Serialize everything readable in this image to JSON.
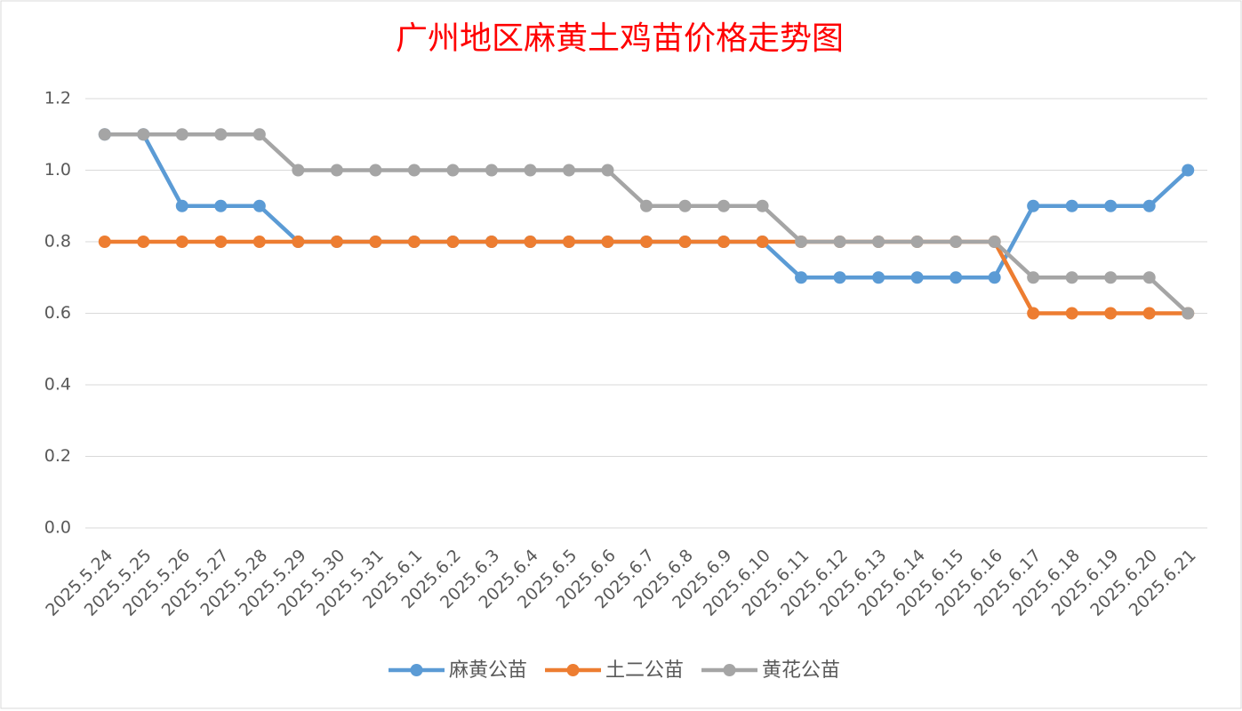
{
  "chart_data": {
    "type": "line",
    "title": "广州地区麻黄土鸡苗价格走势图",
    "categories": [
      "2025.5.24",
      "2025.5.25",
      "2025.5.26",
      "2025.5.27",
      "2025.5.28",
      "2025.5.29",
      "2025.5.30",
      "2025.5.31",
      "2025.6.1",
      "2025.6.2",
      "2025.6.3",
      "2025.6.4",
      "2025.6.5",
      "2025.6.6",
      "2025.6.7",
      "2025.6.8",
      "2025.6.9",
      "2025.6.10",
      "2025.6.11",
      "2025.6.12",
      "2025.6.13",
      "2025.6.14",
      "2025.6.15",
      "2025.6.16",
      "2025.6.17",
      "2025.6.18",
      "2025.6.19",
      "2025.6.20",
      "2025.6.21"
    ],
    "series": [
      {
        "name": "麻黄公苗",
        "color": "#5b9bd5",
        "values": [
          1.1,
          1.1,
          0.9,
          0.9,
          0.9,
          0.8,
          0.8,
          0.8,
          0.8,
          0.8,
          0.8,
          0.8,
          0.8,
          0.8,
          0.8,
          0.8,
          0.8,
          0.8,
          0.7,
          0.7,
          0.7,
          0.7,
          0.7,
          0.7,
          0.9,
          0.9,
          0.9,
          0.9,
          1.0
        ]
      },
      {
        "name": "土二公苗",
        "color": "#ed7d31",
        "values": [
          0.8,
          0.8,
          0.8,
          0.8,
          0.8,
          0.8,
          0.8,
          0.8,
          0.8,
          0.8,
          0.8,
          0.8,
          0.8,
          0.8,
          0.8,
          0.8,
          0.8,
          0.8,
          0.8,
          0.8,
          0.8,
          0.8,
          0.8,
          0.8,
          0.6,
          0.6,
          0.6,
          0.6,
          0.6
        ]
      },
      {
        "name": "黄花公苗",
        "color": "#a5a5a5",
        "values": [
          1.1,
          1.1,
          1.1,
          1.1,
          1.1,
          1.0,
          1.0,
          1.0,
          1.0,
          1.0,
          1.0,
          1.0,
          1.0,
          1.0,
          0.9,
          0.9,
          0.9,
          0.9,
          0.8,
          0.8,
          0.8,
          0.8,
          0.8,
          0.8,
          0.7,
          0.7,
          0.7,
          0.7,
          0.6
        ]
      }
    ],
    "ylim": [
      0,
      1.2
    ],
    "yticks": [
      {
        "value": 0,
        "label": "0.0"
      },
      0.2,
      0.4,
      0.6,
      0.8,
      {
        "value": 1,
        "label": "1.0"
      },
      1.2
    ],
    "grid": true,
    "legend": "bottom"
  }
}
